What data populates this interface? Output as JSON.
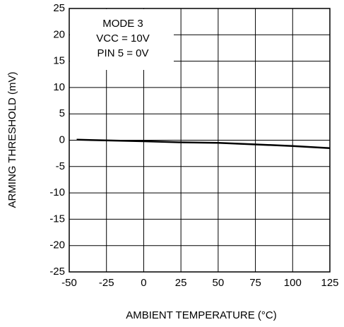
{
  "chart_data": {
    "type": "line",
    "xlabel": "AMBIENT TEMPERATURE (°C)",
    "ylabel": "ARMING THRESHOLD (mV)",
    "annotations": [
      "MODE 3",
      "VCC = 10V",
      "PIN 5 = 0V"
    ],
    "x": [
      -45,
      0,
      25,
      50,
      75,
      100,
      125
    ],
    "series": [
      {
        "color": "#000000",
        "values": [
          0.1,
          -0.2,
          -0.4,
          -0.5,
          -0.8,
          -1.1,
          -1.5
        ]
      }
    ],
    "xlim": [
      -50,
      125
    ],
    "xticks": [
      -50,
      -25,
      0,
      25,
      50,
      75,
      100,
      125
    ],
    "ylim": [
      -25,
      25
    ],
    "yticks": [
      -25,
      -20,
      -15,
      -10,
      -5,
      0,
      5,
      10,
      15,
      20,
      25
    ],
    "grid": true
  }
}
